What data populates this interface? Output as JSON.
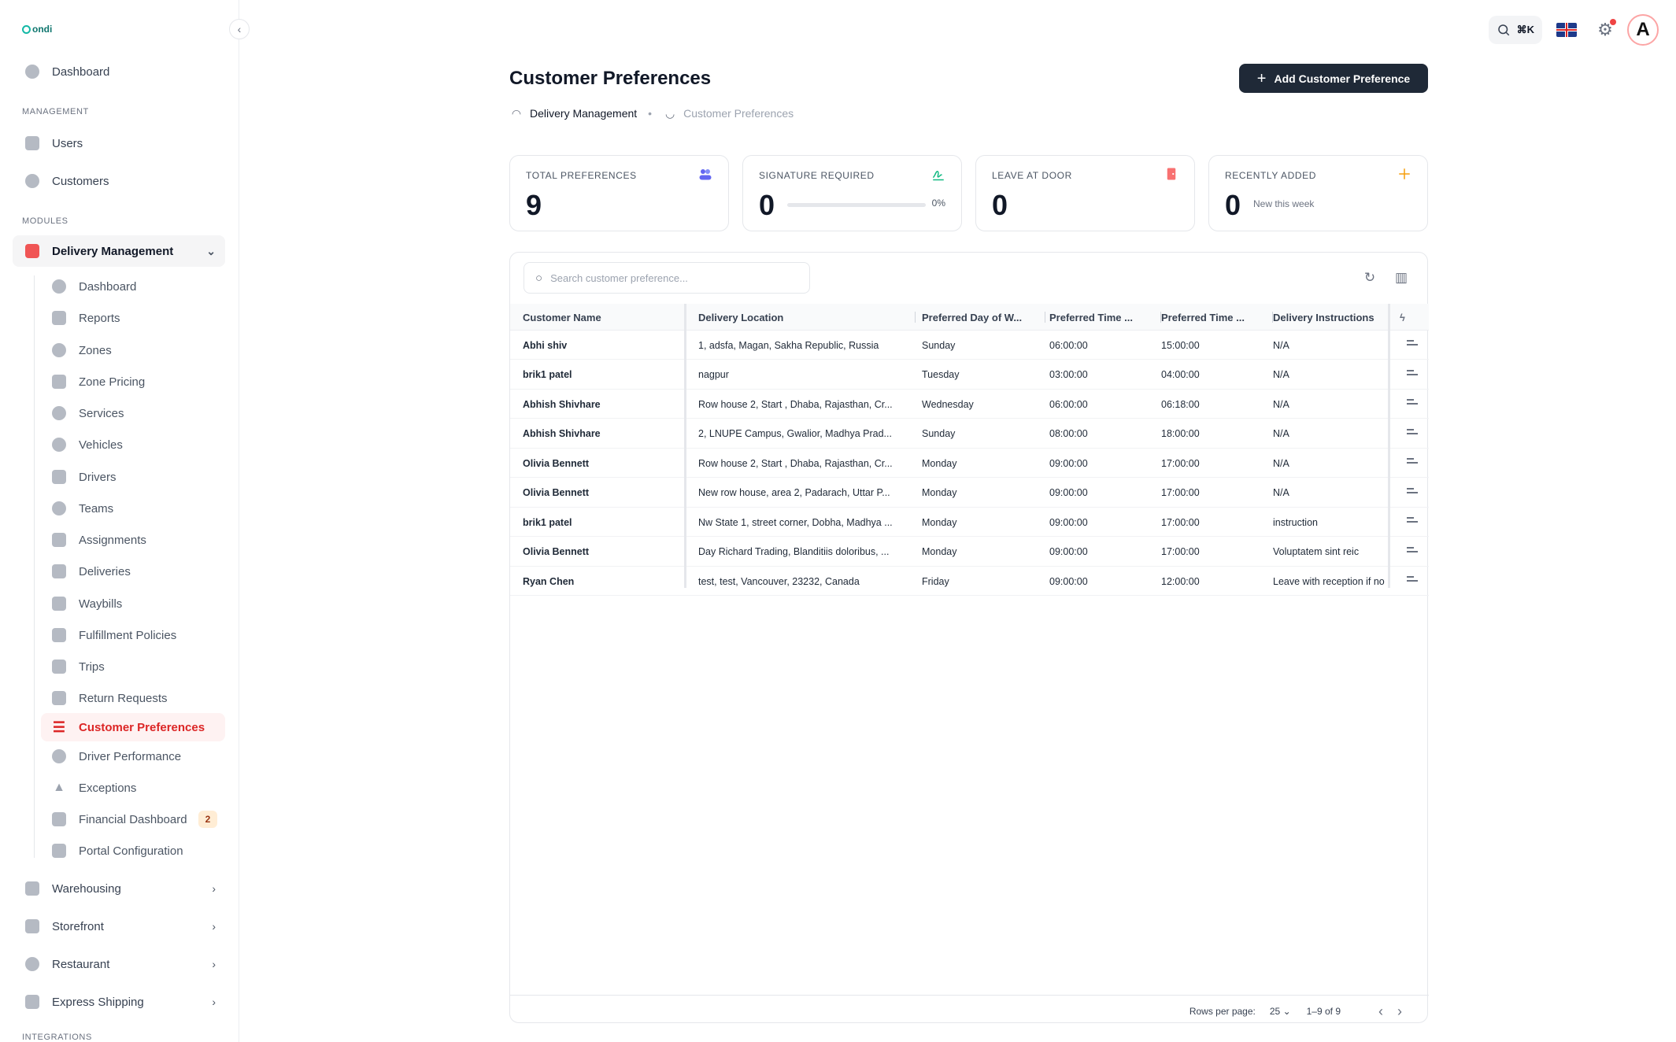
{
  "app": {
    "logo_text": "ondi"
  },
  "sidebar": {
    "top_item": {
      "label": "Dashboard"
    },
    "sections": {
      "management": "MANAGEMENT",
      "modules": "MODULES",
      "integrations": "INTEGRATIONS"
    },
    "management_items": [
      {
        "label": "Users"
      },
      {
        "label": "Customers"
      }
    ],
    "delivery_management": {
      "label": "Delivery Management",
      "children": [
        {
          "label": "Dashboard"
        },
        {
          "label": "Reports"
        },
        {
          "label": "Zones"
        },
        {
          "label": "Zone Pricing"
        },
        {
          "label": "Services"
        },
        {
          "label": "Vehicles"
        },
        {
          "label": "Drivers"
        },
        {
          "label": "Teams"
        },
        {
          "label": "Assignments"
        },
        {
          "label": "Deliveries"
        },
        {
          "label": "Waybills"
        },
        {
          "label": "Fulfillment Policies"
        },
        {
          "label": "Trips"
        },
        {
          "label": "Return Requests"
        },
        {
          "label": "Customer Preferences"
        },
        {
          "label": "Driver Performance"
        },
        {
          "label": "Exceptions"
        },
        {
          "label": "Financial Dashboard",
          "badge": "2"
        },
        {
          "label": "Portal Configuration"
        }
      ]
    },
    "other_modules": [
      {
        "label": "Warehousing"
      },
      {
        "label": "Storefront"
      },
      {
        "label": "Restaurant"
      },
      {
        "label": "Express Shipping"
      }
    ]
  },
  "topbar": {
    "shortcut": "⌘K",
    "avatar_letter": "A"
  },
  "page": {
    "title": "Customer Preferences",
    "breadcrumb": {
      "parent": "Delivery Management",
      "current": "Customer Preferences"
    },
    "add_button": "Add Customer Preference"
  },
  "stats": {
    "total": {
      "label": "TOTAL PREFERENCES",
      "value": "9"
    },
    "signature": {
      "label": "SIGNATURE REQUIRED",
      "value": "0",
      "percent_text": "0%",
      "progress": 0
    },
    "door": {
      "label": "LEAVE AT DOOR",
      "value": "0"
    },
    "recent": {
      "label": "RECENTLY ADDED",
      "value": "0",
      "sub": "New this week"
    }
  },
  "table": {
    "search_placeholder": "Search customer preference...",
    "columns": [
      "Customer Name",
      "Delivery Location",
      "Preferred Day of W...",
      "Preferred Time ...",
      "Preferred Time ...",
      "Delivery Instructions"
    ],
    "rows": [
      [
        "Abhi shiv",
        "1, adsfa, Magan, Sakha Republic, Russia",
        "Sunday",
        "06:00:00",
        "15:00:00",
        "N/A"
      ],
      [
        "brik1 patel",
        "nagpur",
        "Tuesday",
        "03:00:00",
        "04:00:00",
        "N/A"
      ],
      [
        "Abhish Shivhare",
        "Row house 2, Start , Dhaba, Rajasthan, Cr...",
        "Wednesday",
        "06:00:00",
        "06:18:00",
        "N/A"
      ],
      [
        "Abhish Shivhare",
        "2, LNUPE Campus, Gwalior, Madhya Prad...",
        "Sunday",
        "08:00:00",
        "18:00:00",
        "N/A"
      ],
      [
        "Olivia Bennett",
        "Row house 2, Start , Dhaba, Rajasthan, Cr...",
        "Monday",
        "09:00:00",
        "17:00:00",
        "N/A"
      ],
      [
        "Olivia Bennett",
        "New row house, area 2, Padarach, Uttar P...",
        "Monday",
        "09:00:00",
        "17:00:00",
        "N/A"
      ],
      [
        "brik1 patel",
        "Nw State 1, street corner, Dobha, Madhya ...",
        "Monday",
        "09:00:00",
        "17:00:00",
        "instruction"
      ],
      [
        "Olivia Bennett",
        "Day Richard Trading, Blanditiis doloribus, ...",
        "Monday",
        "09:00:00",
        "17:00:00",
        "Voluptatem sint reic"
      ],
      [
        "Ryan Chen",
        "test, test, Vancouver, 23232, Canada",
        "Friday",
        "09:00:00",
        "12:00:00",
        "Leave with reception if not"
      ]
    ],
    "footer": {
      "rows_per_page_label": "Rows per page:",
      "rows_per_page": "25",
      "range": "1–9 of 9"
    }
  },
  "colors": {
    "accent": "#dc2626",
    "dark_button": "#1f2937"
  }
}
